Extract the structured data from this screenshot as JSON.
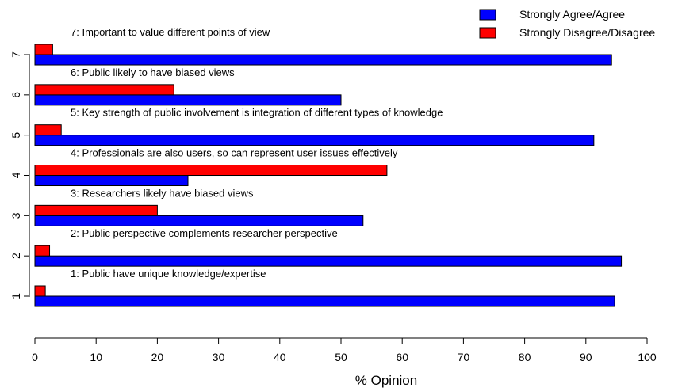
{
  "chart_data": {
    "type": "bar",
    "orientation": "horizontal",
    "title": "",
    "xlabel": "% Opinion",
    "ylabel": "",
    "xlim": [
      0,
      100
    ],
    "xticks": [
      0,
      10,
      20,
      30,
      40,
      50,
      60,
      70,
      80,
      90,
      100
    ],
    "grid": false,
    "legend_position": "top-right",
    "categories": [
      "1",
      "2",
      "3",
      "4",
      "5",
      "6",
      "7"
    ],
    "statements": [
      "1: Public have unique knowledge/expertise",
      "2: Public perspective complements researcher perspective",
      "3: Researchers likely have biased views",
      "4: Professionals are also users, so can represent user issues effectively",
      "5: Key strength of public involvement is integration of different types of knowledge",
      "6: Public likely to have biased views",
      "7: Important to value different points of view"
    ],
    "series": [
      {
        "name": "Strongly Agree/Agree",
        "color": "#0000ff",
        "values": [
          94.7,
          95.8,
          53.6,
          25.0,
          91.3,
          50.0,
          94.2
        ]
      },
      {
        "name": "Strongly Disagree/Disagree",
        "color": "#ff0000",
        "values": [
          1.7,
          2.4,
          20.0,
          57.5,
          4.3,
          22.7,
          2.9
        ]
      }
    ]
  }
}
